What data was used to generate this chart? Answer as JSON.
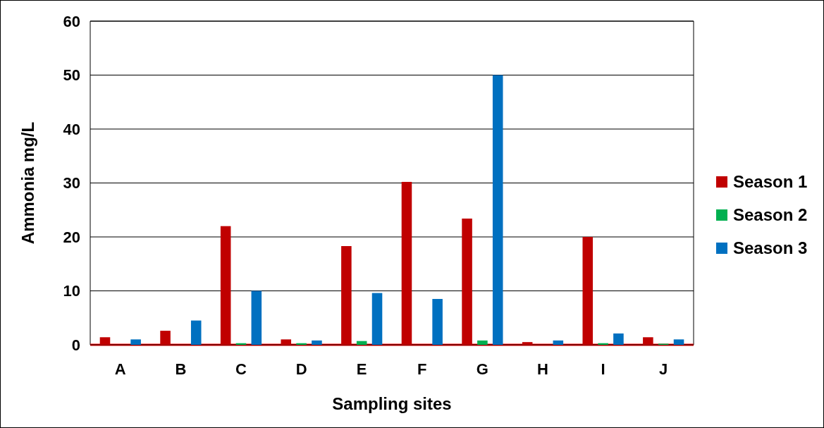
{
  "chart_data": {
    "type": "bar",
    "xlabel": "Sampling sites",
    "ylabel": "Ammonia mg/L",
    "categories": [
      "A",
      "B",
      "C",
      "D",
      "E",
      "F",
      "G",
      "H",
      "I",
      "J"
    ],
    "series": [
      {
        "name": "Season 1",
        "color": "#c00000",
        "values": [
          1.4,
          2.6,
          22,
          1.0,
          18.3,
          30.2,
          23.4,
          0.5,
          20,
          1.4
        ]
      },
      {
        "name": "Season 2",
        "color": "#00b050",
        "values": [
          null,
          null,
          0.3,
          0.3,
          0.7,
          null,
          0.8,
          null,
          0.3,
          0.2
        ]
      },
      {
        "name": "Season 3",
        "color": "#0070c0",
        "values": [
          1.0,
          4.5,
          10,
          0.8,
          9.6,
          8.5,
          50,
          0.8,
          2.1,
          1.0
        ]
      }
    ],
    "ylim": [
      0,
      60
    ],
    "yticks": [
      0,
      10,
      20,
      30,
      40,
      50,
      60
    ],
    "grid": "y",
    "legend": "right"
  }
}
